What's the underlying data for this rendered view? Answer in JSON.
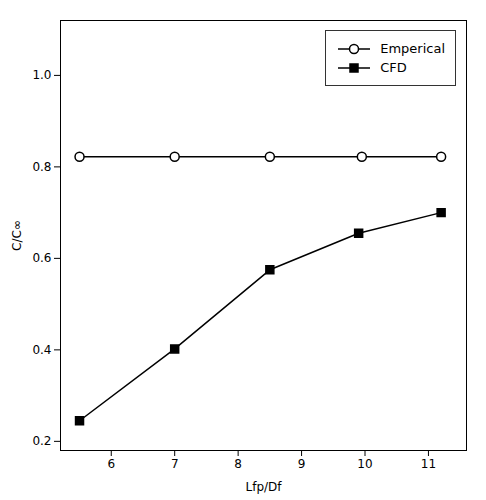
{
  "chart_data": {
    "type": "line",
    "xlabel": "Lfp/Df",
    "ylabel": "C/C∞",
    "series": [
      {
        "name": "Emperical",
        "color": "black",
        "marker": "circle",
        "x": [
          5.5,
          7.0,
          8.5,
          9.95,
          11.2
        ],
        "values": [
          0.822,
          0.822,
          0.822,
          0.822,
          0.822
        ]
      },
      {
        "name": "CFD",
        "color": "black",
        "marker": "square",
        "x": [
          5.5,
          7.0,
          8.5,
          9.9,
          11.2
        ],
        "values": [
          0.245,
          0.402,
          0.575,
          0.655,
          0.7
        ]
      }
    ],
    "xlim": [
      5.2,
      11.6
    ],
    "ylim": [
      0.18,
      1.12
    ],
    "xticks": [
      6,
      7,
      8,
      9,
      10,
      11
    ],
    "yticks": [
      0.2,
      0.4,
      0.6,
      0.8,
      {
        "value": 1,
        "label": "1.0"
      }
    ],
    "grid": false,
    "legend": "upper right"
  }
}
